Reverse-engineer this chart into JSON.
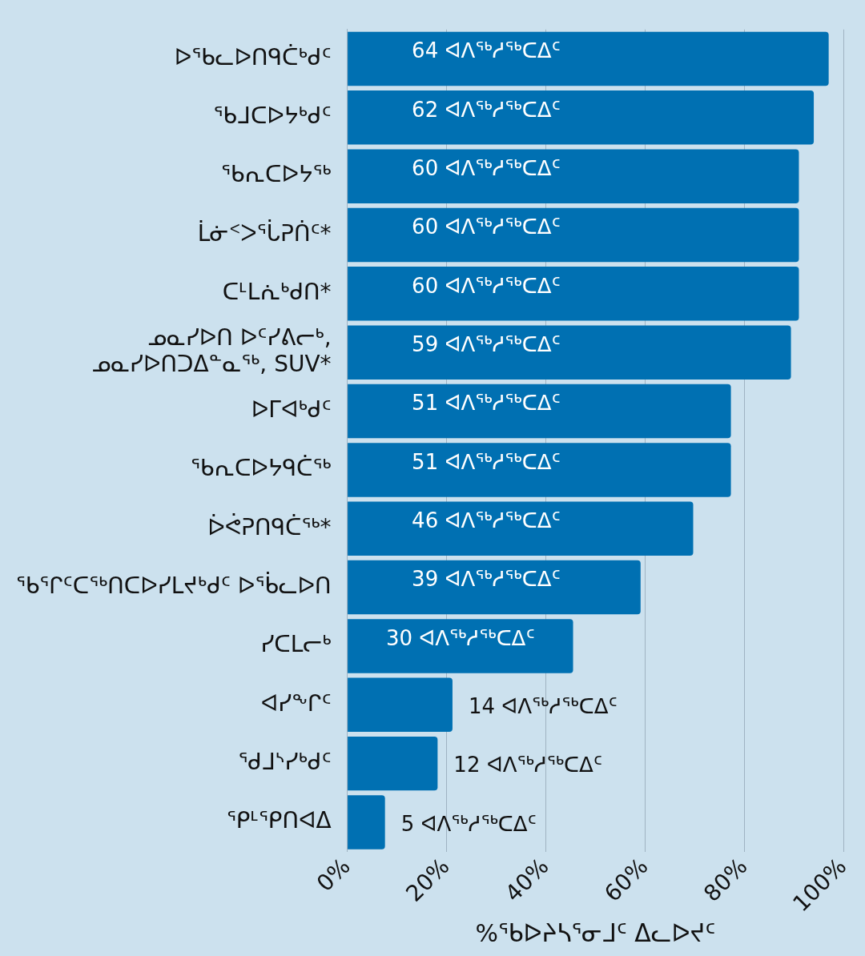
{
  "chart_data": {
    "type": "bar",
    "orientation": "horizontal",
    "xlabel": "%ᖃᐅᔨᓴᕐᓂᒧᑦ ᐃᓚᐅᔪᑦ",
    "categories": [
      "ᐅᖃᓚᐅᑎᑫᑖᒃᑯᑦ",
      "ᖃᒧᑕᐅᔭᒃᑯᑦ",
      "ᖃᕆᑕᐅᔭᖅ",
      "ᒫᓃᑉᐳᕐᒑᕈᑏᑦ*",
      "ᑕᒻᒪᕇᒃᑯᑎ*",
      "ᓄᓇᓯᐅᑎ ᐅᑦᓯᕕᓕᒃ, ᓄᓇᓯᐅᑎᑐᐃᓐᓇᖅ, SUV*",
      "ᐅᒥᐊᒃᑯᑦ",
      "ᖃᕆᑕᐅᔭᑫᑖᖅ",
      "ᐆᕚᕈᑎᑫᑖᖅ*",
      "ᖃᕐᒋᑦᑕᖅᑎᑕᐅᓯᒪᔪᒃᑯᑦ ᐅᖄᓚᐅᑎ",
      "ᓯᑕᒪᓕᒃ",
      "ᐊᓯᖕᒋᑦ",
      "ᖁᒧᔅᓯᒃᑯᑦ",
      "ᕿᒻᕿᑎᐊᐃ"
    ],
    "values": [
      97,
      94,
      91,
      91,
      91,
      89.4,
      77.3,
      77.3,
      69.7,
      59.1,
      45.5,
      21.2,
      18.2,
      7.6
    ],
    "annotations": [
      "64 ᐊᐱᖅᓱᖅᑕᐃᑦ",
      "62 ᐊᐱᖅᓱᖅᑕᐃᑦ",
      "60 ᐊᐱᖅᓱᖅᑕᐃᑦ",
      "60 ᐊᐱᖅᓱᖅᑕᐃᑦ",
      "60 ᐊᐱᖅᓱᖅᑕᐃᑦ",
      "59 ᐊᐱᖅᓱᖅᑕᐃᑦ",
      "51 ᐊᐱᖅᓱᖅᑕᐃᑦ",
      "51 ᐊᐱᖅᓱᖅᑕᐃᑦ",
      "46 ᐊᐱᖅᓱᖅᑕᐃᑦ",
      "39 ᐊᐱᖅᓱᖅᑕᐃᑦ",
      "30 ᐊᐱᖅᓱᖅᑕᐃᑦ",
      "14 ᐊᐱᖅᓱᖅᑕᐃᑦ",
      "12 ᐊᐱᖅᓱᖅᑕᐃᑦ",
      "5 ᐊᐱᖅᓱᖅᑕᐃᑦ"
    ],
    "color": "#0070b2",
    "xlim": [
      0,
      100
    ],
    "xticks": [
      {
        "value": 0,
        "label": "0%"
      },
      {
        "value": 20,
        "label": "20%"
      },
      {
        "value": 40,
        "label": "40%"
      },
      {
        "value": 60,
        "label": "60%"
      },
      {
        "value": 80,
        "label": "80%"
      },
      {
        "value": 100,
        "label": "100%"
      }
    ],
    "grid": "x",
    "legend": false
  }
}
